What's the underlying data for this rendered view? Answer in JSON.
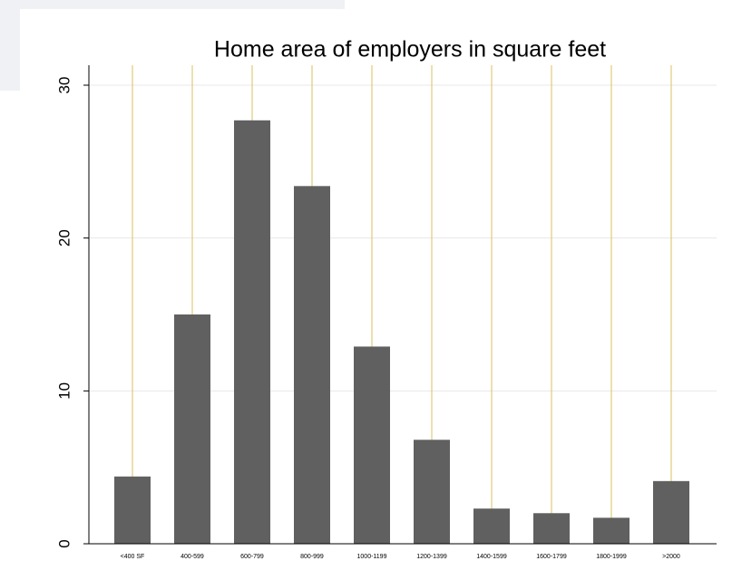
{
  "chart_data": {
    "type": "bar",
    "title": "Home area of employers in square feet",
    "categories": [
      "<400 SF",
      "400-599",
      "600-799",
      "800-999",
      "1000-1199",
      "1200-1399",
      "1400-1599",
      "1600-1799",
      "1800-1999",
      ">2000"
    ],
    "values": [
      4.4,
      15.0,
      27.7,
      23.4,
      12.9,
      6.8,
      2.3,
      2.0,
      1.7,
      4.1
    ],
    "color": "#606060",
    "ylim": [
      0,
      30
    ],
    "yticks": [
      0,
      10,
      20,
      30
    ],
    "grid": true
  }
}
